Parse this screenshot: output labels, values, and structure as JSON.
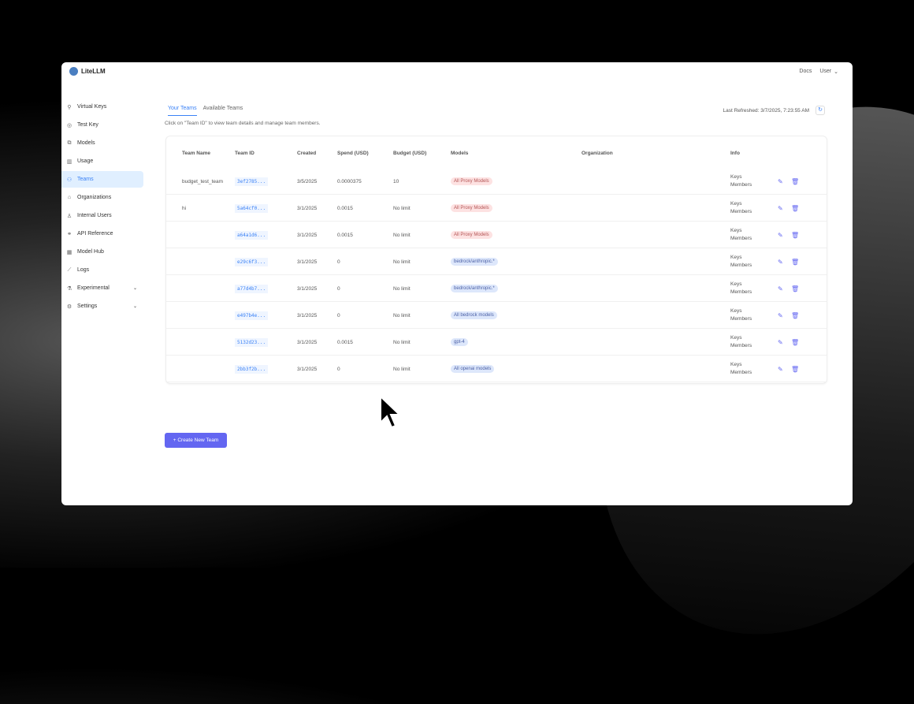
{
  "app": {
    "name": "LiteLLM",
    "docs": "Docs",
    "user": "User"
  },
  "sidebar": {
    "items": [
      {
        "label": "Virtual Keys",
        "icon": "key-icon",
        "glyph": "⚲"
      },
      {
        "label": "Test Key",
        "icon": "play-circle-icon",
        "glyph": "◎"
      },
      {
        "label": "Models",
        "icon": "blocks-icon",
        "glyph": "⧉"
      },
      {
        "label": "Usage",
        "icon": "bar-chart-icon",
        "glyph": "▥"
      },
      {
        "label": "Teams",
        "icon": "team-icon",
        "glyph": "⚇",
        "active": true
      },
      {
        "label": "Organizations",
        "icon": "bank-icon",
        "glyph": "⌂"
      },
      {
        "label": "Internal Users",
        "icon": "user-icon",
        "glyph": "♙"
      },
      {
        "label": "API Reference",
        "icon": "link-icon",
        "glyph": "⚭"
      },
      {
        "label": "Model Hub",
        "icon": "grid-icon",
        "glyph": "▦"
      },
      {
        "label": "Logs",
        "icon": "line-chart-icon",
        "glyph": "⟋"
      },
      {
        "label": "Experimental",
        "icon": "flask-icon",
        "glyph": "⚗",
        "expandable": true
      },
      {
        "label": "Settings",
        "icon": "gear-icon",
        "glyph": "⚙",
        "expandable": true
      }
    ]
  },
  "tabs": [
    {
      "label": "Your Teams",
      "active": true
    },
    {
      "label": "Available Teams"
    }
  ],
  "hint": "Click on \"Team ID\" to view team details and manage team members.",
  "last_refreshed": "Last Refreshed: 3/7/2025, 7:23:55 AM",
  "table": {
    "headers": [
      "Team Name",
      "Team ID",
      "Created",
      "Spend (USD)",
      "Budget (USD)",
      "Models",
      "Organization",
      "Info"
    ],
    "rows": [
      {
        "name": "budget_test_team",
        "id": "3ef2785...",
        "created": "3/5/2025",
        "spend": "0.0000375",
        "budget": "10",
        "model": "All Proxy Models",
        "color": "red",
        "org": "",
        "keys": "Keys",
        "members": "Members"
      },
      {
        "name": "hi",
        "id": "5a64cf0...",
        "created": "3/1/2025",
        "spend": "0.0015",
        "budget": "No limit",
        "model": "All Proxy Models",
        "color": "red",
        "org": "",
        "keys": "Keys",
        "members": "Members"
      },
      {
        "name": "",
        "id": "a64a1d6...",
        "created": "3/1/2025",
        "spend": "0.0015",
        "budget": "No limit",
        "model": "All Proxy Models",
        "color": "red",
        "org": "",
        "keys": "Keys",
        "members": "Members"
      },
      {
        "name": "",
        "id": "e29c6f3...",
        "created": "3/1/2025",
        "spend": "0",
        "budget": "No limit",
        "model": "bedrock/anthropic.*",
        "color": "blue",
        "org": "",
        "keys": "Keys",
        "members": "Members"
      },
      {
        "name": "",
        "id": "a77d4b7...",
        "created": "3/1/2025",
        "spend": "0",
        "budget": "No limit",
        "model": "bedrock/anthropic.*",
        "color": "blue",
        "org": "",
        "keys": "Keys",
        "members": "Members"
      },
      {
        "name": "",
        "id": "e497b4e...",
        "created": "3/1/2025",
        "spend": "0",
        "budget": "No limit",
        "model": "All bedrock models",
        "color": "blue",
        "org": "",
        "keys": "Keys",
        "members": "Members"
      },
      {
        "name": "",
        "id": "5132d23...",
        "created": "3/1/2025",
        "spend": "0.0015",
        "budget": "No limit",
        "model": "gpt-4",
        "color": "blue",
        "org": "",
        "keys": "Keys",
        "members": "Members"
      },
      {
        "name": "",
        "id": "2bb3f2b...",
        "created": "3/1/2025",
        "spend": "0",
        "budget": "No limit",
        "model": "All openai models",
        "color": "blue",
        "org": "",
        "keys": "Keys",
        "members": "Members"
      }
    ]
  },
  "create_button": "+ Create New Team",
  "colors": {
    "accent": "#6366f1",
    "active": "#3b82f6"
  }
}
